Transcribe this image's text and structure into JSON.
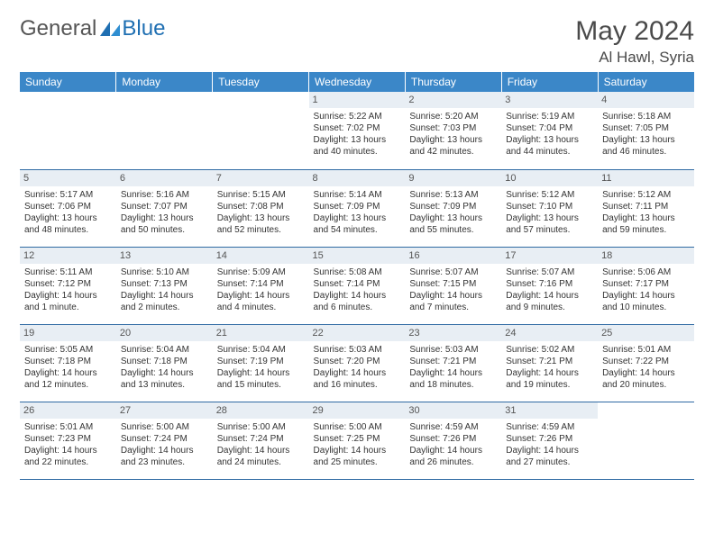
{
  "logo": {
    "text1": "General",
    "text2": "Blue"
  },
  "title": "May 2024",
  "location": "Al Hawl, Syria",
  "colors": {
    "header_bg": "#3b87c8",
    "header_fg": "#ffffff",
    "daynum_bg": "#e8eef4",
    "row_border": "#2f6aa3",
    "logo_gray": "#555555",
    "logo_blue": "#1f6fb2"
  },
  "weekdays": [
    "Sunday",
    "Monday",
    "Tuesday",
    "Wednesday",
    "Thursday",
    "Friday",
    "Saturday"
  ],
  "weeks": [
    [
      null,
      null,
      null,
      {
        "n": "1",
        "sr": "5:22 AM",
        "ss": "7:02 PM",
        "dl": "13 hours and 40 minutes."
      },
      {
        "n": "2",
        "sr": "5:20 AM",
        "ss": "7:03 PM",
        "dl": "13 hours and 42 minutes."
      },
      {
        "n": "3",
        "sr": "5:19 AM",
        "ss": "7:04 PM",
        "dl": "13 hours and 44 minutes."
      },
      {
        "n": "4",
        "sr": "5:18 AM",
        "ss": "7:05 PM",
        "dl": "13 hours and 46 minutes."
      }
    ],
    [
      {
        "n": "5",
        "sr": "5:17 AM",
        "ss": "7:06 PM",
        "dl": "13 hours and 48 minutes."
      },
      {
        "n": "6",
        "sr": "5:16 AM",
        "ss": "7:07 PM",
        "dl": "13 hours and 50 minutes."
      },
      {
        "n": "7",
        "sr": "5:15 AM",
        "ss": "7:08 PM",
        "dl": "13 hours and 52 minutes."
      },
      {
        "n": "8",
        "sr": "5:14 AM",
        "ss": "7:09 PM",
        "dl": "13 hours and 54 minutes."
      },
      {
        "n": "9",
        "sr": "5:13 AM",
        "ss": "7:09 PM",
        "dl": "13 hours and 55 minutes."
      },
      {
        "n": "10",
        "sr": "5:12 AM",
        "ss": "7:10 PM",
        "dl": "13 hours and 57 minutes."
      },
      {
        "n": "11",
        "sr": "5:12 AM",
        "ss": "7:11 PM",
        "dl": "13 hours and 59 minutes."
      }
    ],
    [
      {
        "n": "12",
        "sr": "5:11 AM",
        "ss": "7:12 PM",
        "dl": "14 hours and 1 minute."
      },
      {
        "n": "13",
        "sr": "5:10 AM",
        "ss": "7:13 PM",
        "dl": "14 hours and 2 minutes."
      },
      {
        "n": "14",
        "sr": "5:09 AM",
        "ss": "7:14 PM",
        "dl": "14 hours and 4 minutes."
      },
      {
        "n": "15",
        "sr": "5:08 AM",
        "ss": "7:14 PM",
        "dl": "14 hours and 6 minutes."
      },
      {
        "n": "16",
        "sr": "5:07 AM",
        "ss": "7:15 PM",
        "dl": "14 hours and 7 minutes."
      },
      {
        "n": "17",
        "sr": "5:07 AM",
        "ss": "7:16 PM",
        "dl": "14 hours and 9 minutes."
      },
      {
        "n": "18",
        "sr": "5:06 AM",
        "ss": "7:17 PM",
        "dl": "14 hours and 10 minutes."
      }
    ],
    [
      {
        "n": "19",
        "sr": "5:05 AM",
        "ss": "7:18 PM",
        "dl": "14 hours and 12 minutes."
      },
      {
        "n": "20",
        "sr": "5:04 AM",
        "ss": "7:18 PM",
        "dl": "14 hours and 13 minutes."
      },
      {
        "n": "21",
        "sr": "5:04 AM",
        "ss": "7:19 PM",
        "dl": "14 hours and 15 minutes."
      },
      {
        "n": "22",
        "sr": "5:03 AM",
        "ss": "7:20 PM",
        "dl": "14 hours and 16 minutes."
      },
      {
        "n": "23",
        "sr": "5:03 AM",
        "ss": "7:21 PM",
        "dl": "14 hours and 18 minutes."
      },
      {
        "n": "24",
        "sr": "5:02 AM",
        "ss": "7:21 PM",
        "dl": "14 hours and 19 minutes."
      },
      {
        "n": "25",
        "sr": "5:01 AM",
        "ss": "7:22 PM",
        "dl": "14 hours and 20 minutes."
      }
    ],
    [
      {
        "n": "26",
        "sr": "5:01 AM",
        "ss": "7:23 PM",
        "dl": "14 hours and 22 minutes."
      },
      {
        "n": "27",
        "sr": "5:00 AM",
        "ss": "7:24 PM",
        "dl": "14 hours and 23 minutes."
      },
      {
        "n": "28",
        "sr": "5:00 AM",
        "ss": "7:24 PM",
        "dl": "14 hours and 24 minutes."
      },
      {
        "n": "29",
        "sr": "5:00 AM",
        "ss": "7:25 PM",
        "dl": "14 hours and 25 minutes."
      },
      {
        "n": "30",
        "sr": "4:59 AM",
        "ss": "7:26 PM",
        "dl": "14 hours and 26 minutes."
      },
      {
        "n": "31",
        "sr": "4:59 AM",
        "ss": "7:26 PM",
        "dl": "14 hours and 27 minutes."
      },
      null
    ]
  ],
  "labels": {
    "sunrise": "Sunrise:",
    "sunset": "Sunset:",
    "daylight": "Daylight:"
  }
}
